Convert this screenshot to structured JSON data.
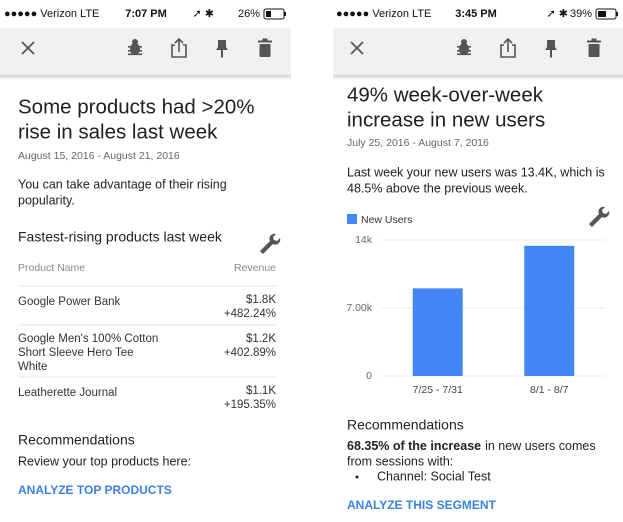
{
  "left": {
    "status": {
      "carrier": "●●●●● Verizon  LTE",
      "time": "7:07 PM",
      "battery": "26%"
    },
    "title_lines": [
      "Some products had >20%",
      "rise in sales last week"
    ],
    "date_range": "August 15, 2016 - August 21, 2016",
    "intro_lines": [
      "You can take advantage of their rising",
      "popularity."
    ],
    "table": {
      "title": "Fastest-rising products last week",
      "headers": [
        "Product Name",
        "Revenue"
      ],
      "rows": [
        {
          "name_lines": [
            "Google Power Bank"
          ],
          "revenue": "$1.8K",
          "change": "+482.24%"
        },
        {
          "name_lines": [
            "Google Men's 100% Cotton",
            "Short Sleeve Hero Tee",
            "White"
          ],
          "revenue": "$1.2K",
          "change": "+402.89%"
        },
        {
          "name_lines": [
            "Leatherette Journal"
          ],
          "revenue": "$1.1K",
          "change": "+195.35%"
        }
      ]
    },
    "recommendations": {
      "heading": "Recommendations",
      "text": "Review your top products here:",
      "link": "ANALYZE TOP PRODUCTS"
    }
  },
  "right": {
    "status": {
      "carrier": "●●●●● Verizon  LTE",
      "time": "3:45 PM",
      "battery": "39%"
    },
    "title_lines": [
      "49% week-over-week",
      "increase in new users"
    ],
    "date_range": "July 25, 2016 - August 7, 2016",
    "intro_lines": [
      "Last week your new users was 13.4K, which is",
      "48.5% above the previous week."
    ],
    "chart": {
      "type": "bar",
      "categories": [
        "7/25 - 7/31",
        "8/1 - 8/7"
      ],
      "series": [
        {
          "name": "New Users",
          "color": "#4285f4",
          "values": [
            9020,
            13400
          ]
        }
      ],
      "ylim": [
        0,
        14000
      ],
      "yticks": [
        0,
        {
          "value": 7000,
          "label": "7.00k"
        },
        {
          "value": 14000,
          "label": "14k"
        }
      ]
    },
    "recommendations": {
      "heading": "Recommendations",
      "summary": {
        "bold": "68.35% of the increase",
        "lines": [
          "in new users comes",
          "from sessions with:"
        ]
      },
      "bullets": [
        "Channel: Social Test"
      ],
      "link": "ANALYZE THIS SEGMENT"
    }
  }
}
